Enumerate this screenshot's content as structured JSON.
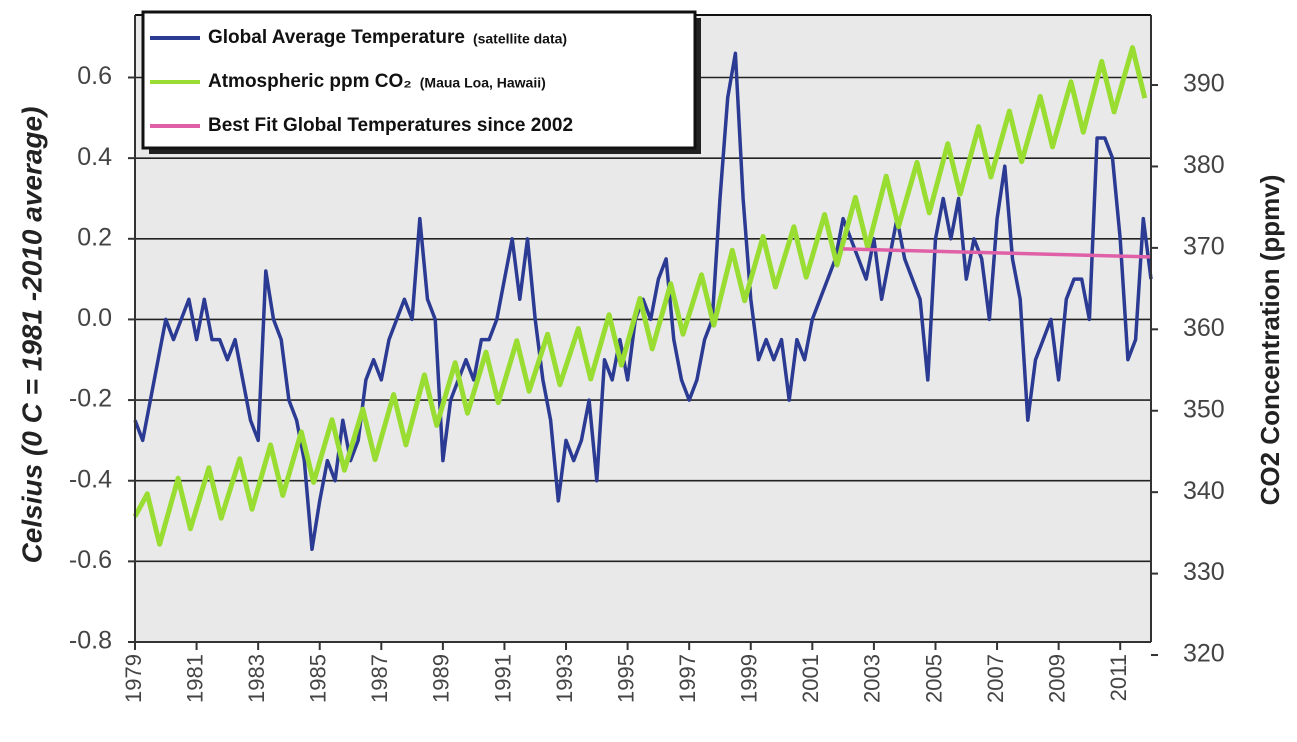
{
  "chart_data": {
    "type": "line",
    "y_title": "Celsius (0 C = 1981 -2010 average)",
    "y2_title": "CO2 Concentration (ppmv)",
    "xlim": [
      1979,
      2012
    ],
    "xticks": [
      1979,
      1981,
      1983,
      1985,
      1987,
      1989,
      1991,
      1993,
      1995,
      1997,
      1999,
      2001,
      2003,
      2005,
      2007,
      2009,
      2011
    ],
    "ylim": [
      -0.8,
      0.755
    ],
    "yticks": [
      -0.8,
      -0.6,
      -0.4,
      -0.2,
      {
        "value": 0,
        "label": "0.0"
      },
      0.2,
      0.4,
      0.6
    ],
    "y2lim": [
      321.6,
      398.6
    ],
    "y2ticks": [
      320,
      330,
      340,
      350,
      360,
      370,
      380,
      390
    ],
    "grid": true,
    "legend": "top-left",
    "series": [
      {
        "name": "Global Average Temperature",
        "detail": "(satellite data)",
        "color": "#2b3a92",
        "x": [
          1979,
          1979.25,
          1979.5,
          1979.75,
          1980,
          1980.25,
          1980.5,
          1980.75,
          1981,
          1981.25,
          1981.5,
          1981.75,
          1982,
          1982.25,
          1982.5,
          1982.75,
          1983,
          1983.25,
          1983.5,
          1983.75,
          1984,
          1984.25,
          1984.5,
          1984.75,
          1985,
          1985.25,
          1985.5,
          1985.75,
          1986,
          1986.25,
          1986.5,
          1986.75,
          1987,
          1987.25,
          1987.5,
          1987.75,
          1988,
          1988.25,
          1988.5,
          1988.75,
          1989,
          1989.25,
          1989.5,
          1989.75,
          1990,
          1990.25,
          1990.5,
          1990.75,
          1991,
          1991.25,
          1991.5,
          1991.75,
          1992,
          1992.25,
          1992.5,
          1992.75,
          1993,
          1993.25,
          1993.5,
          1993.75,
          1994,
          1994.25,
          1994.5,
          1994.75,
          1995,
          1995.25,
          1995.5,
          1995.75,
          1996,
          1996.25,
          1996.5,
          1996.75,
          1997,
          1997.25,
          1997.5,
          1997.75,
          1998,
          1998.25,
          1998.5,
          1998.75,
          1999,
          1999.25,
          1999.5,
          1999.75,
          2000,
          2000.25,
          2000.5,
          2000.75,
          2001,
          2001.25,
          2001.5,
          2001.75,
          2002,
          2002.25,
          2002.5,
          2002.75,
          2003,
          2003.25,
          2003.5,
          2003.75,
          2004,
          2004.25,
          2004.5,
          2004.75,
          2005,
          2005.25,
          2005.5,
          2005.75,
          2006,
          2006.25,
          2006.5,
          2006.75,
          2007,
          2007.25,
          2007.5,
          2007.75,
          2008,
          2008.25,
          2008.5,
          2008.75,
          2009,
          2009.25,
          2009.5,
          2009.75,
          2010,
          2010.25,
          2010.5,
          2010.75,
          2011,
          2011.25,
          2011.5,
          2011.75,
          2012
        ],
        "values": [
          -0.25,
          -0.3,
          -0.2,
          -0.1,
          0.0,
          -0.05,
          0.0,
          0.05,
          -0.05,
          0.05,
          -0.05,
          -0.05,
          -0.1,
          -0.05,
          -0.15,
          -0.25,
          -0.3,
          0.12,
          0.0,
          -0.05,
          -0.2,
          -0.25,
          -0.35,
          -0.57,
          -0.45,
          -0.35,
          -0.4,
          -0.25,
          -0.35,
          -0.3,
          -0.15,
          -0.1,
          -0.15,
          -0.05,
          0.0,
          0.05,
          0.0,
          0.25,
          0.05,
          0.0,
          -0.35,
          -0.2,
          -0.15,
          -0.1,
          -0.15,
          -0.05,
          -0.05,
          0.0,
          0.1,
          0.2,
          0.05,
          0.2,
          0.0,
          -0.15,
          -0.25,
          -0.45,
          -0.3,
          -0.35,
          -0.3,
          -0.2,
          -0.4,
          -0.1,
          -0.15,
          -0.05,
          -0.15,
          0.0,
          0.05,
          0.0,
          0.1,
          0.15,
          -0.05,
          -0.15,
          -0.2,
          -0.15,
          -0.05,
          0.0,
          0.3,
          0.55,
          0.66,
          0.3,
          0.05,
          -0.1,
          -0.05,
          -0.1,
          -0.05,
          -0.2,
          -0.05,
          -0.1,
          0.0,
          0.05,
          0.1,
          0.15,
          0.25,
          0.2,
          0.15,
          0.1,
          0.2,
          0.05,
          0.15,
          0.25,
          0.15,
          0.1,
          0.05,
          -0.15,
          0.2,
          0.3,
          0.2,
          0.3,
          0.1,
          0.2,
          0.15,
          0.0,
          0.25,
          0.38,
          0.15,
          0.05,
          -0.25,
          -0.1,
          -0.05,
          0.0,
          -0.15,
          0.05,
          0.1,
          0.1,
          0.0,
          0.45,
          0.45,
          0.4,
          0.2,
          -0.1,
          -0.05,
          0.25,
          0.1
        ]
      },
      {
        "name": "Atmospheric ppm CO₂",
        "detail": "(Maua Loa, Hawaii)",
        "color": "#99dd33",
        "axis": "y2",
        "x": [
          1979,
          1979.4,
          1979.8,
          1980.4,
          1980.8,
          1981.4,
          1981.8,
          1982.4,
          1982.8,
          1983.4,
          1983.8,
          1984.4,
          1984.8,
          1985.4,
          1985.8,
          1986.4,
          1986.8,
          1987.4,
          1987.8,
          1988.4,
          1988.8,
          1989.4,
          1989.8,
          1990.4,
          1990.8,
          1991.4,
          1991.8,
          1992.4,
          1992.8,
          1993.4,
          1993.8,
          1994.4,
          1994.8,
          1995.4,
          1995.8,
          1996.4,
          1996.8,
          1997.4,
          1997.8,
          1998.4,
          1998.8,
          1999.4,
          1999.8,
          2000.4,
          2000.8,
          2001.4,
          2001.8,
          2002.4,
          2002.8,
          2003.4,
          2003.8,
          2004.4,
          2004.8,
          2005.4,
          2005.8,
          2006.4,
          2006.8,
          2007.4,
          2007.8,
          2008.4,
          2008.8,
          2009.4,
          2009.8,
          2010.4,
          2010.8,
          2011.4,
          2011.8
        ],
        "values": [
          337,
          339.8,
          333.6,
          341.7,
          335.5,
          343.0,
          336.8,
          344.1,
          337.9,
          345.8,
          339.6,
          347.4,
          341.2,
          348.9,
          342.7,
          350.2,
          344.0,
          352.0,
          345.8,
          354.4,
          348.2,
          355.9,
          349.7,
          357.2,
          351.0,
          358.6,
          352.4,
          359.4,
          353.2,
          360.1,
          353.9,
          361.8,
          355.6,
          363.8,
          357.6,
          365.6,
          359.4,
          366.7,
          360.5,
          369.7,
          363.5,
          371.4,
          365.2,
          372.6,
          366.4,
          374.1,
          367.9,
          376.2,
          370.0,
          378.8,
          372.6,
          380.5,
          374.3,
          382.8,
          376.6,
          384.9,
          378.7,
          386.8,
          380.6,
          388.6,
          382.4,
          390.4,
          384.2,
          392.9,
          386.7,
          394.6,
          388.4
        ]
      },
      {
        "name": "Best Fit Global Temperatures since 2002",
        "color": "#e060a8",
        "x": [
          2002,
          2012
        ],
        "values": [
          0.175,
          0.155
        ]
      }
    ]
  }
}
